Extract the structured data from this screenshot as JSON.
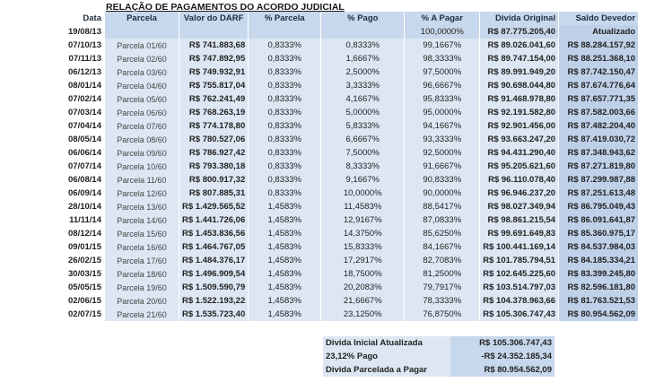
{
  "title": "RELAÇÃO DE PAGAMENTOS DO ACORDO JUDICIAL",
  "headers": {
    "data": "Data",
    "parcela": "Parcela",
    "valor": "Valor do DARF",
    "pct_parcela": "% Parcela",
    "pct_pago": "% Pago",
    "pct_a_pagar": "% A Pagar",
    "divida": "Divida Original",
    "saldo": "Saldo Devedor",
    "saldo2": "Atualizado"
  },
  "initial": {
    "date": "19/08/13",
    "pct_a_pagar": "100,0000%",
    "divida": "R$ 87.775.205,40"
  },
  "rows": [
    [
      "07/10/13",
      "Parcela 01/60",
      "R$ 741.883,68",
      "0,8333%",
      "0,8333%",
      "99,1667%",
      "R$ 89.026.041,60",
      "R$ 88.284.157,92"
    ],
    [
      "07/11/13",
      "Parcela 02/60",
      "R$ 747.892,95",
      "0,8333%",
      "1,6667%",
      "98,3333%",
      "R$ 89.747.154,00",
      "R$ 88.251.368,10"
    ],
    [
      "06/12/13",
      "Parcela 03/60",
      "R$ 749.932,91",
      "0,8333%",
      "2,5000%",
      "97,5000%",
      "R$ 89.991.949,20",
      "R$ 87.742.150,47"
    ],
    [
      "08/01/14",
      "Parcela 04/60",
      "R$ 755.817,04",
      "0,8333%",
      "3,3333%",
      "96,6667%",
      "R$ 90.698.044,80",
      "R$ 87.674.776,64"
    ],
    [
      "07/02/14",
      "Parcela 05/60",
      "R$ 762.241,49",
      "0,8333%",
      "4,1667%",
      "95,8333%",
      "R$ 91.468.978,80",
      "R$ 87.657.771,35"
    ],
    [
      "07/03/14",
      "Parcela 06/60",
      "R$ 768.263,19",
      "0,8333%",
      "5,0000%",
      "95,0000%",
      "R$ 92.191.582,80",
      "R$ 87.582.003,66"
    ],
    [
      "07/04/14",
      "Parcela 07/60",
      "R$ 774.178,80",
      "0,8333%",
      "5,8333%",
      "94,1667%",
      "R$ 92.901.456,00",
      "R$ 87.482.204,40"
    ],
    [
      "08/05/14",
      "Parcela 08/60",
      "R$ 780.527,06",
      "0,8333%",
      "6,6667%",
      "93,3333%",
      "R$ 93.663.247,20",
      "R$ 87.419.030,72"
    ],
    [
      "06/06/14",
      "Parcela 09/60",
      "R$ 786.927,42",
      "0,8333%",
      "7,5000%",
      "92,5000%",
      "R$ 94.431.290,40",
      "R$ 87.348.943,62"
    ],
    [
      "07/07/14",
      "Parcela 10/60",
      "R$ 793.380,18",
      "0,8333%",
      "8,3333%",
      "91,6667%",
      "R$ 95.205.621,60",
      "R$ 87.271.819,80"
    ],
    [
      "06/08/14",
      "Parcela 11/60",
      "R$ 800.917,32",
      "0,8333%",
      "9,1667%",
      "90,8333%",
      "R$ 96.110.078,40",
      "R$ 87.299.987,88"
    ],
    [
      "06/09/14",
      "Parcela 12/60",
      "R$ 807.885,31",
      "0,8333%",
      "10,0000%",
      "90,0000%",
      "R$ 96.946.237,20",
      "R$ 87.251.613,48"
    ],
    [
      "28/10/14",
      "Parcela 13/60",
      "R$ 1.429.565,52",
      "1,4583%",
      "11,4583%",
      "88,5417%",
      "R$ 98.027.349,94",
      "R$ 86.795.049,43"
    ],
    [
      "11/11/14",
      "Parcela 14/60",
      "R$ 1.441.726,06",
      "1,4583%",
      "12,9167%",
      "87,0833%",
      "R$ 98.861.215,54",
      "R$ 86.091.641,87"
    ],
    [
      "08/12/14",
      "Parcela 15/60",
      "R$ 1.453.836,56",
      "1,4583%",
      "14,3750%",
      "85,6250%",
      "R$ 99.691.649,83",
      "R$ 85.360.975,17"
    ],
    [
      "09/01/15",
      "Parcela 16/60",
      "R$ 1.464.767,05",
      "1,4583%",
      "15,8333%",
      "84,1667%",
      "R$ 100.441.169,14",
      "R$ 84.537.984,03"
    ],
    [
      "26/02/15",
      "Parcela 17/60",
      "R$ 1.484.376,17",
      "1,4583%",
      "17,2917%",
      "82,7083%",
      "R$ 101.785.794,51",
      "R$ 84.185.334,21"
    ],
    [
      "30/03/15",
      "Parcela 18/60",
      "R$ 1.496.909,54",
      "1,4583%",
      "18,7500%",
      "81,2500%",
      "R$ 102.645.225,60",
      "R$ 83.399.245,80"
    ],
    [
      "05/05/15",
      "Parcela 19/60",
      "R$ 1.509.590,79",
      "1,4583%",
      "20,2083%",
      "79,7917%",
      "R$ 103.514.797,03",
      "R$ 82.596.181,80"
    ],
    [
      "02/06/15",
      "Parcela 20/60",
      "R$ 1.522.193,22",
      "1,4583%",
      "21,6667%",
      "78,3333%",
      "R$ 104.378.963,66",
      "R$ 81.763.521,53"
    ],
    [
      "02/07/15",
      "Parcela 21/60",
      "R$ 1.535.723,40",
      "1,4583%",
      "23,1250%",
      "76,8750%",
      "R$ 105.306.747,43",
      "R$ 80.954.562,09"
    ]
  ],
  "summary": [
    {
      "label": "Divida Inicial Atualizada",
      "value": "R$ 105.306.747,43"
    },
    {
      "label": "23,12% Pago",
      "value": "-R$ 24.352.185,34"
    },
    {
      "label": "Divida Parcelada a Pagar",
      "value": "R$ 80.954.562,09"
    }
  ]
}
